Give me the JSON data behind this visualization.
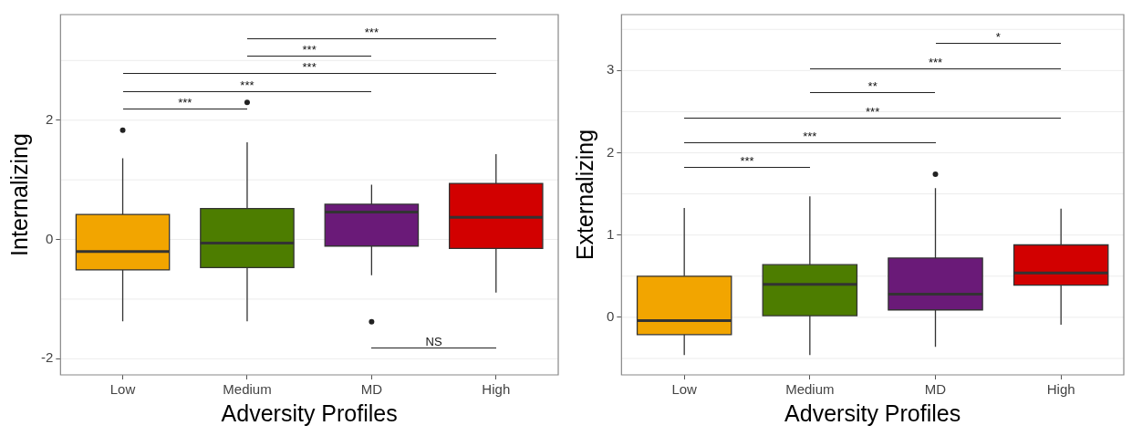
{
  "chart_data": [
    {
      "type": "box",
      "xlabel": "Adversity Profiles",
      "ylabel": "Internalizing",
      "categories": [
        "Low",
        "Medium",
        "MD",
        "High"
      ],
      "colors": [
        "#f2a500",
        "#4d7d00",
        "#6a1a78",
        "#d20000"
      ],
      "ylim": [
        -2.27,
        3.77
      ],
      "yticks": [
        -2,
        0,
        2
      ],
      "grid": true,
      "boxes": [
        {
          "low": -1.37,
          "q1": -0.51,
          "median": -0.2,
          "q3": 0.42,
          "high": 1.36,
          "outliers": [
            1.83
          ]
        },
        {
          "low": -1.37,
          "q1": -0.47,
          "median": -0.06,
          "q3": 0.52,
          "high": 1.63,
          "outliers": [
            2.3
          ]
        },
        {
          "low": -0.6,
          "q1": -0.11,
          "median": 0.46,
          "q3": 0.59,
          "high": 0.92,
          "outliers": [
            -1.38
          ]
        },
        {
          "low": -0.89,
          "q1": -0.15,
          "median": 0.37,
          "q3": 0.94,
          "high": 1.43
        }
      ],
      "annotations": [
        "***",
        "***",
        "***",
        "***",
        "***",
        "NS"
      ]
    },
    {
      "type": "box",
      "xlabel": "Adversity Profiles",
      "ylabel": "Externalizing",
      "categories": [
        "Low",
        "Medium",
        "MD",
        "High"
      ],
      "colors": [
        "#f2a500",
        "#4d7d00",
        "#6a1a78",
        "#d20000"
      ],
      "ylim": [
        -0.7,
        3.68
      ],
      "yticks": [
        0,
        1,
        2,
        3
      ],
      "grid": true,
      "boxes": [
        {
          "low": -0.46,
          "q1": -0.21,
          "median": -0.04,
          "q3": 0.5,
          "high": 1.33
        },
        {
          "low": -0.46,
          "q1": 0.02,
          "median": 0.4,
          "q3": 0.64,
          "high": 1.47
        },
        {
          "low": -0.36,
          "q1": 0.09,
          "median": 0.28,
          "q3": 0.72,
          "high": 1.57,
          "outliers": [
            1.74
          ]
        },
        {
          "low": -0.09,
          "q1": 0.39,
          "median": 0.54,
          "q3": 0.88,
          "high": 1.32
        }
      ],
      "annotations": [
        "*",
        "***",
        "**",
        "***",
        "***",
        "***"
      ]
    }
  ]
}
